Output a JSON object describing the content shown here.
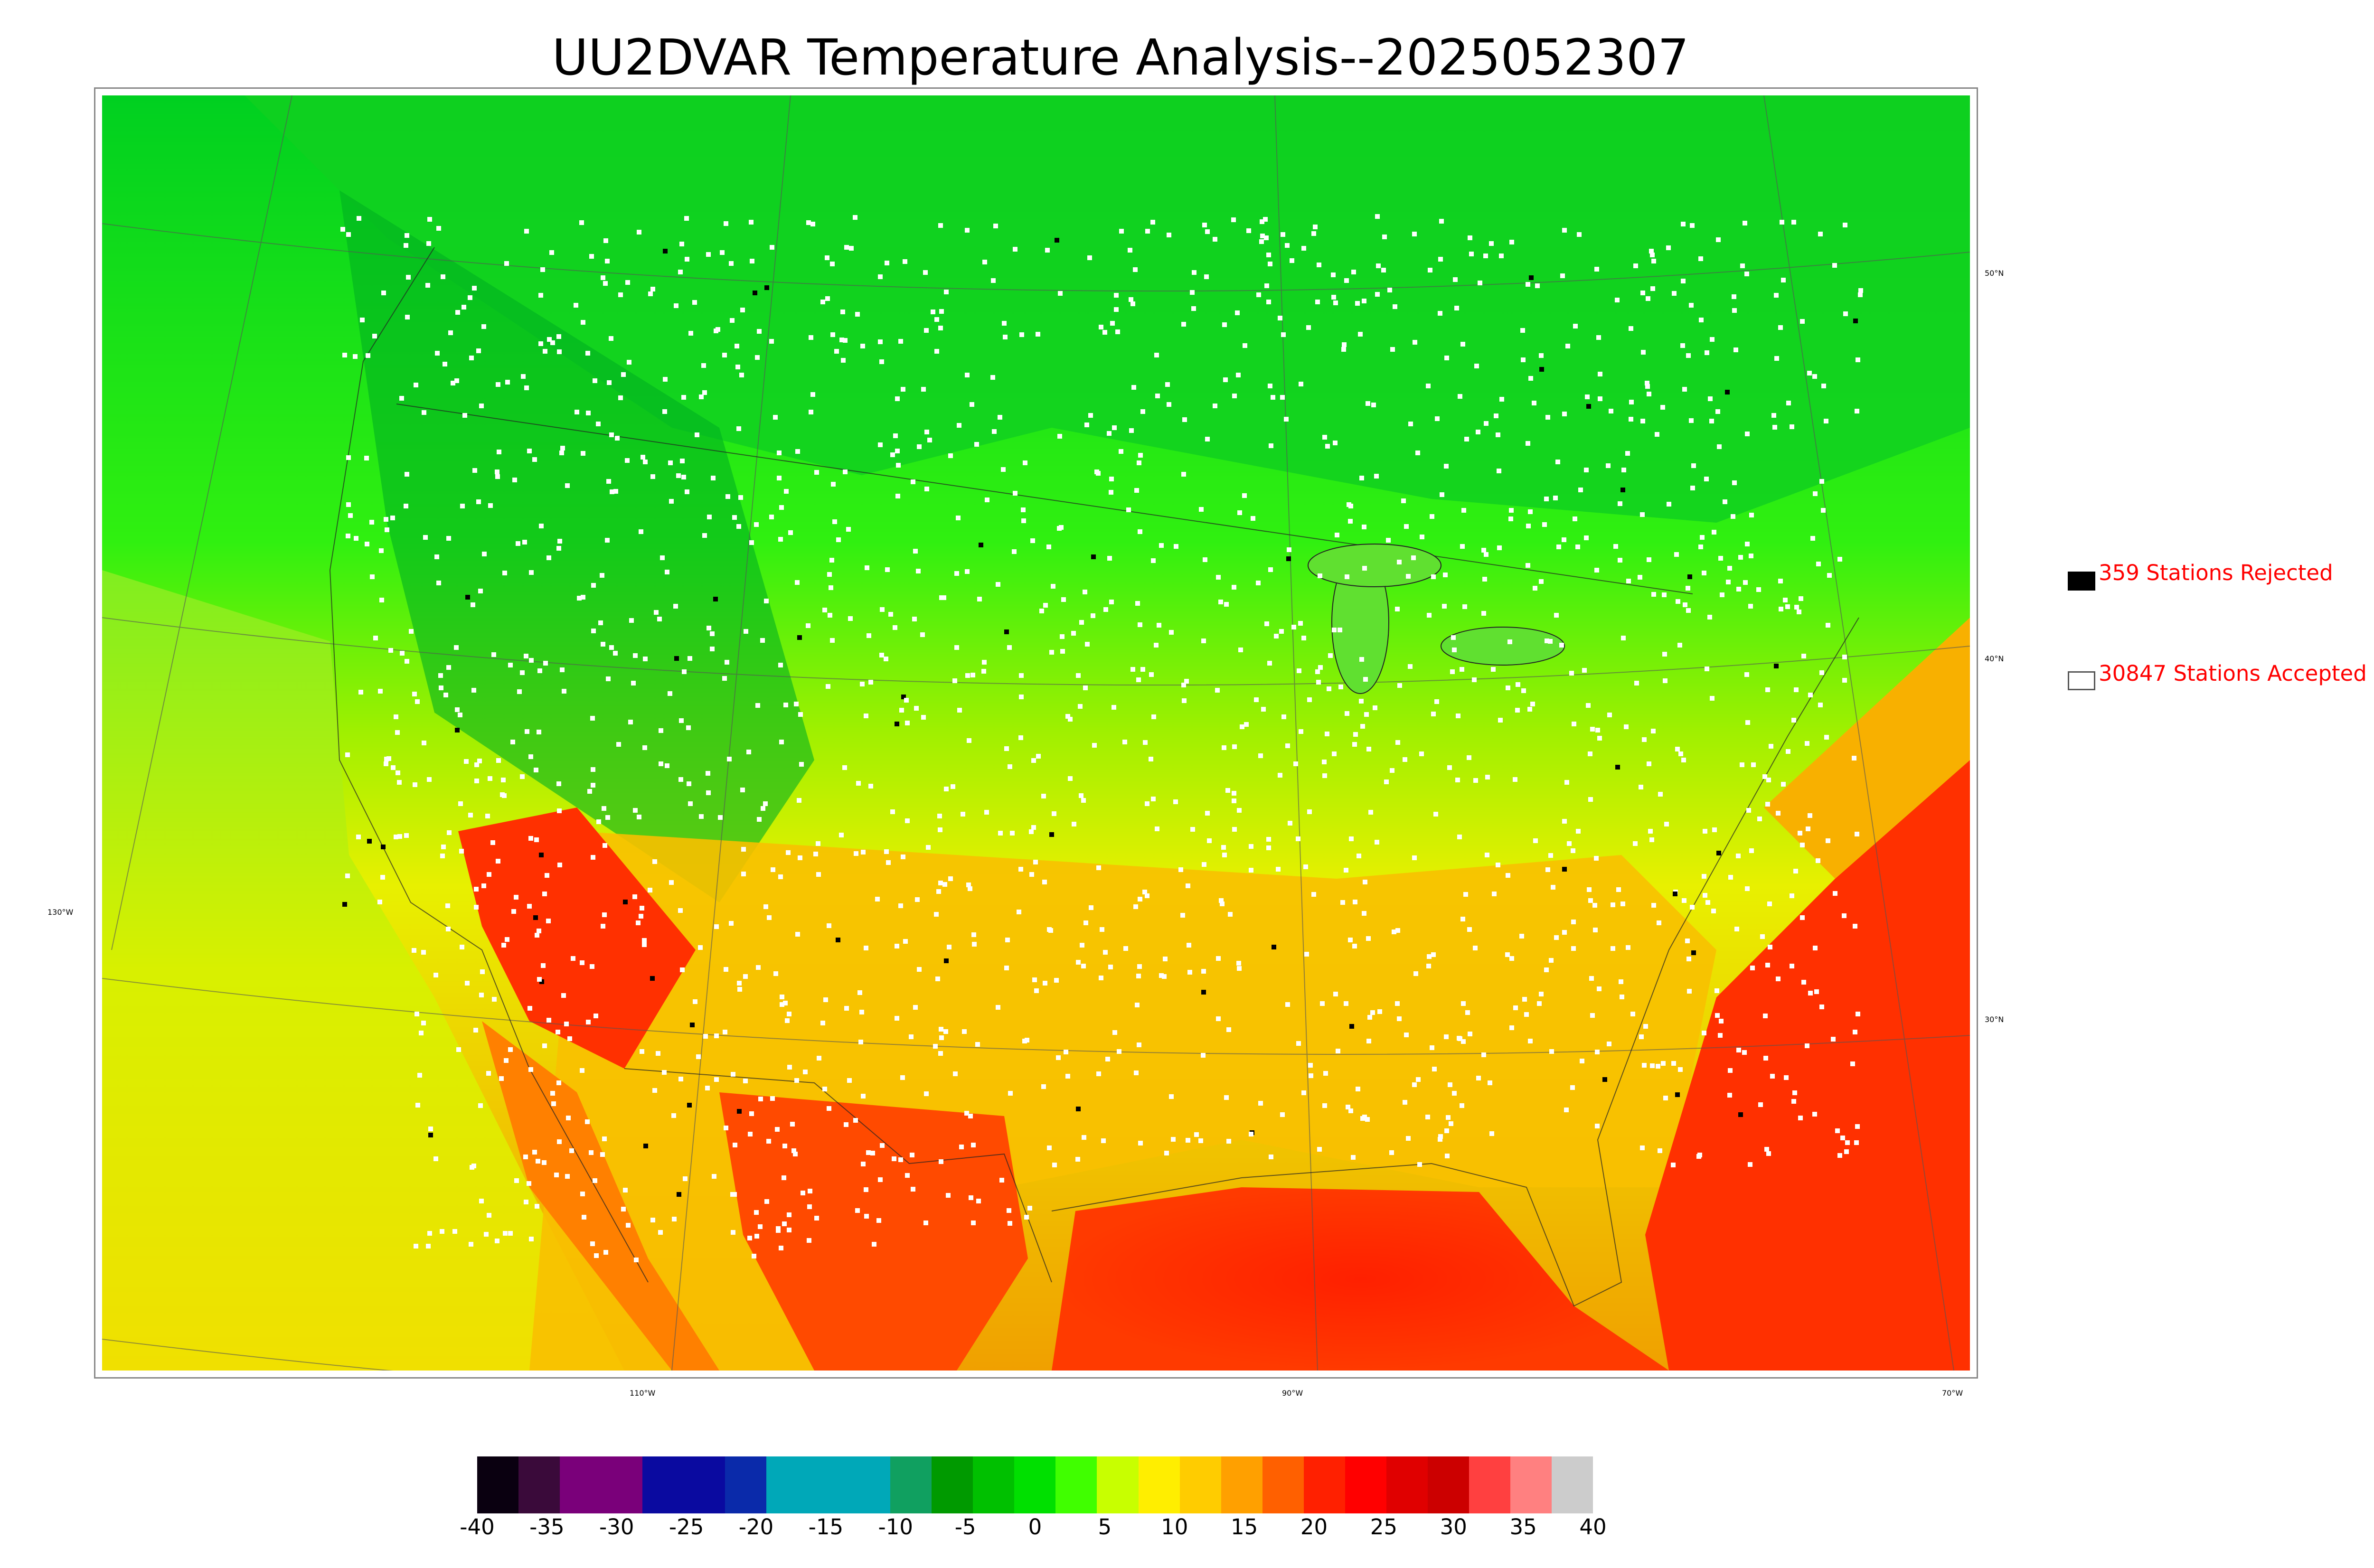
{
  "title": "UU2DVAR Temperature Analysis--2025052307",
  "lat_labels": [
    "50°N",
    "40°N",
    "30°N"
  ],
  "lon_labels": [
    "130°W",
    "110°W",
    "90°W",
    "70°W"
  ],
  "legend": {
    "rejected": {
      "label": "359 Stations Rejected",
      "color": "#000000"
    },
    "accepted": {
      "label": "30847 Stations Accepted",
      "color": "#ffffff"
    }
  },
  "colorbar": {
    "tick_labels": [
      "-40",
      "-35",
      "-30",
      "-25",
      "-20",
      "-15",
      "-10",
      "-5",
      "0",
      "5",
      "10",
      "15",
      "20",
      "25",
      "30",
      "35",
      "40"
    ],
    "range": [
      -40,
      40
    ],
    "units_note": "",
    "colors": [
      "#0a0010",
      "#3a0a3a",
      "#7a007a",
      "#7a007a",
      "#0a0aa0",
      "#0a0aa0",
      "#0a2aaa",
      "#00a8b8",
      "#00a8b8",
      "#00a8b8",
      "#10a060",
      "#009a00",
      "#00c000",
      "#00e000",
      "#40ff00",
      "#c8ff00",
      "#ffee00",
      "#ffcc00",
      "#ffa000",
      "#ff6000",
      "#ff2000",
      "#ff0000",
      "#e00000",
      "#cc0000",
      "#ff4040",
      "#ff8080",
      "#cccccc"
    ]
  }
}
